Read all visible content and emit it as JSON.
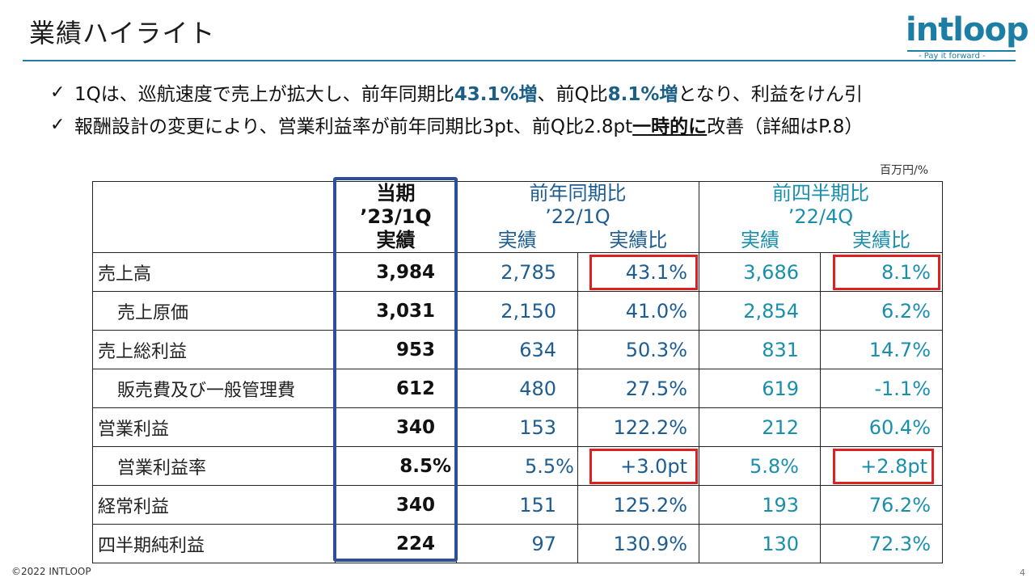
{
  "header": {
    "title": "業績ハイライト"
  },
  "logo": {
    "word": "intloop",
    "tagline": "- Pay it forward -"
  },
  "bullets": [
    {
      "check": "✓",
      "pre": " 1Qは、巡航速度で売上が拡大し、前年同期比",
      "hl1": "43.1%増",
      "mid": "、前Q比",
      "hl2": "8.1%増",
      "post": "となり、利益をけん引"
    },
    {
      "check": "✓",
      "pre": " 報酬設計の変更により、営業利益率が前年同期比3pt、前Q比2.8pt",
      "ul": "一時的に",
      "post": "改善（詳細はP.8）"
    }
  ],
  "unit_note": "百万円/%",
  "table": {
    "headers": {
      "current": [
        "当期",
        "’23/1Q",
        "実績"
      ],
      "yoy": {
        "title": "前年同期比",
        "period": "’22/1Q",
        "col1": "実績",
        "col2": "実績比"
      },
      "qoq": {
        "title": "前四半期比",
        "period": "’22/4Q",
        "col1": "実績",
        "col2": "実績比"
      }
    },
    "rows": [
      {
        "label": "売上高",
        "current": "3,984",
        "yoy_actual": "2,785",
        "yoy_ratio": "43.1%",
        "qoq_actual": "3,686",
        "qoq_ratio": "8.1%"
      },
      {
        "label": "売上原価",
        "current": "3,031",
        "yoy_actual": "2,150",
        "yoy_ratio": "41.0%",
        "qoq_actual": "2,854",
        "qoq_ratio": "6.2%"
      },
      {
        "label": "売上総利益",
        "current": "953",
        "yoy_actual": "634",
        "yoy_ratio": "50.3%",
        "qoq_actual": "831",
        "qoq_ratio": "14.7%"
      },
      {
        "label": "販売費及び一般管理費",
        "current": "612",
        "yoy_actual": "480",
        "yoy_ratio": "27.5%",
        "qoq_actual": "619",
        "qoq_ratio": "-1.1%"
      },
      {
        "label": "営業利益",
        "current": "340",
        "yoy_actual": "153",
        "yoy_ratio": "122.2%",
        "qoq_actual": "212",
        "qoq_ratio": "60.4%"
      },
      {
        "label": "営業利益率",
        "current": "8.5%",
        "yoy_actual": "5.5%",
        "yoy_ratio": "+3.0pt",
        "qoq_actual": "5.8%",
        "qoq_ratio": "+2.8pt"
      },
      {
        "label": "経常利益",
        "current": "340",
        "yoy_actual": "151",
        "yoy_ratio": "125.2%",
        "qoq_actual": "193",
        "qoq_ratio": "76.2%"
      },
      {
        "label": "四半期純利益",
        "current": "224",
        "yoy_actual": "97",
        "yoy_ratio": "130.9%",
        "qoq_actual": "130",
        "qoq_ratio": "72.3%"
      }
    ]
  },
  "footer": {
    "copyright": "©2022 INTLOOP",
    "page": "4"
  }
}
